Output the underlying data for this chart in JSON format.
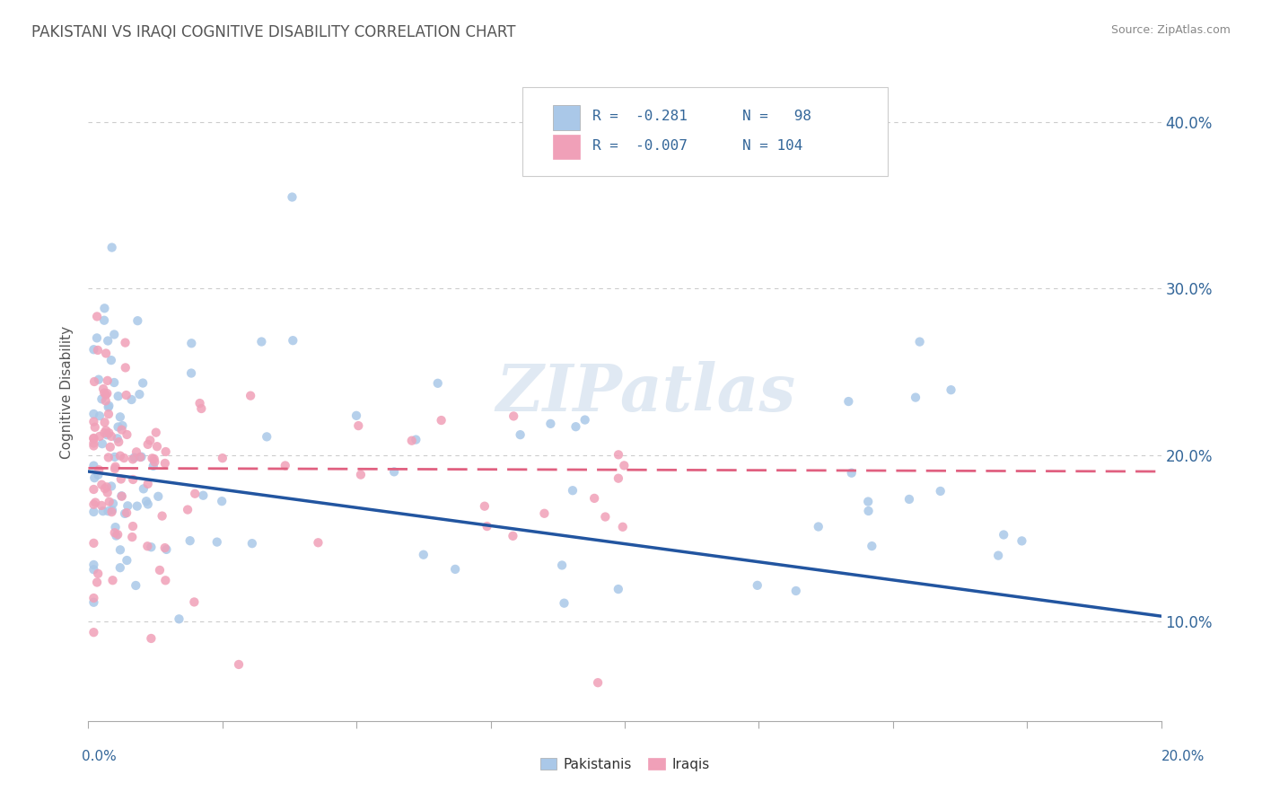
{
  "title": "PAKISTANI VS IRAQI COGNITIVE DISABILITY CORRELATION CHART",
  "source": "Source: ZipAtlas.com",
  "ylabel": "Cognitive Disability",
  "xlim": [
    0.0,
    0.2
  ],
  "ylim": [
    0.04,
    0.435
  ],
  "yticks": [
    0.1,
    0.2,
    0.3,
    0.4
  ],
  "ytick_labels": [
    "10.0%",
    "20.0%",
    "30.0%",
    "40.0%"
  ],
  "xticks": [
    0.0,
    0.025,
    0.05,
    0.075,
    0.1,
    0.125,
    0.15,
    0.175,
    0.2
  ],
  "pakistani_color": "#aac8e8",
  "iraqi_color": "#f0a0b8",
  "pakistani_line_color": "#2255a0",
  "iraqi_line_color": "#e06080",
  "iraqi_line_style": "dashed",
  "watermark": "ZIPatlas",
  "background_color": "#ffffff",
  "grid_color": "#cccccc",
  "title_color": "#555555",
  "axis_label_color": "#336699",
  "legend_R1": "R =  -0.281",
  "legend_N1": "N =   98",
  "legend_R2": "R =  -0.007",
  "legend_N2": "N = 104",
  "legend_color1": "#aac8e8",
  "legend_color2": "#f0a0b8",
  "pak_line_x0": 0.0,
  "pak_line_y0": 0.19,
  "pak_line_x1": 0.2,
  "pak_line_y1": 0.103,
  "irq_line_x0": 0.0,
  "irq_line_y0": 0.192,
  "irq_line_x1": 0.2,
  "irq_line_y1": 0.19
}
